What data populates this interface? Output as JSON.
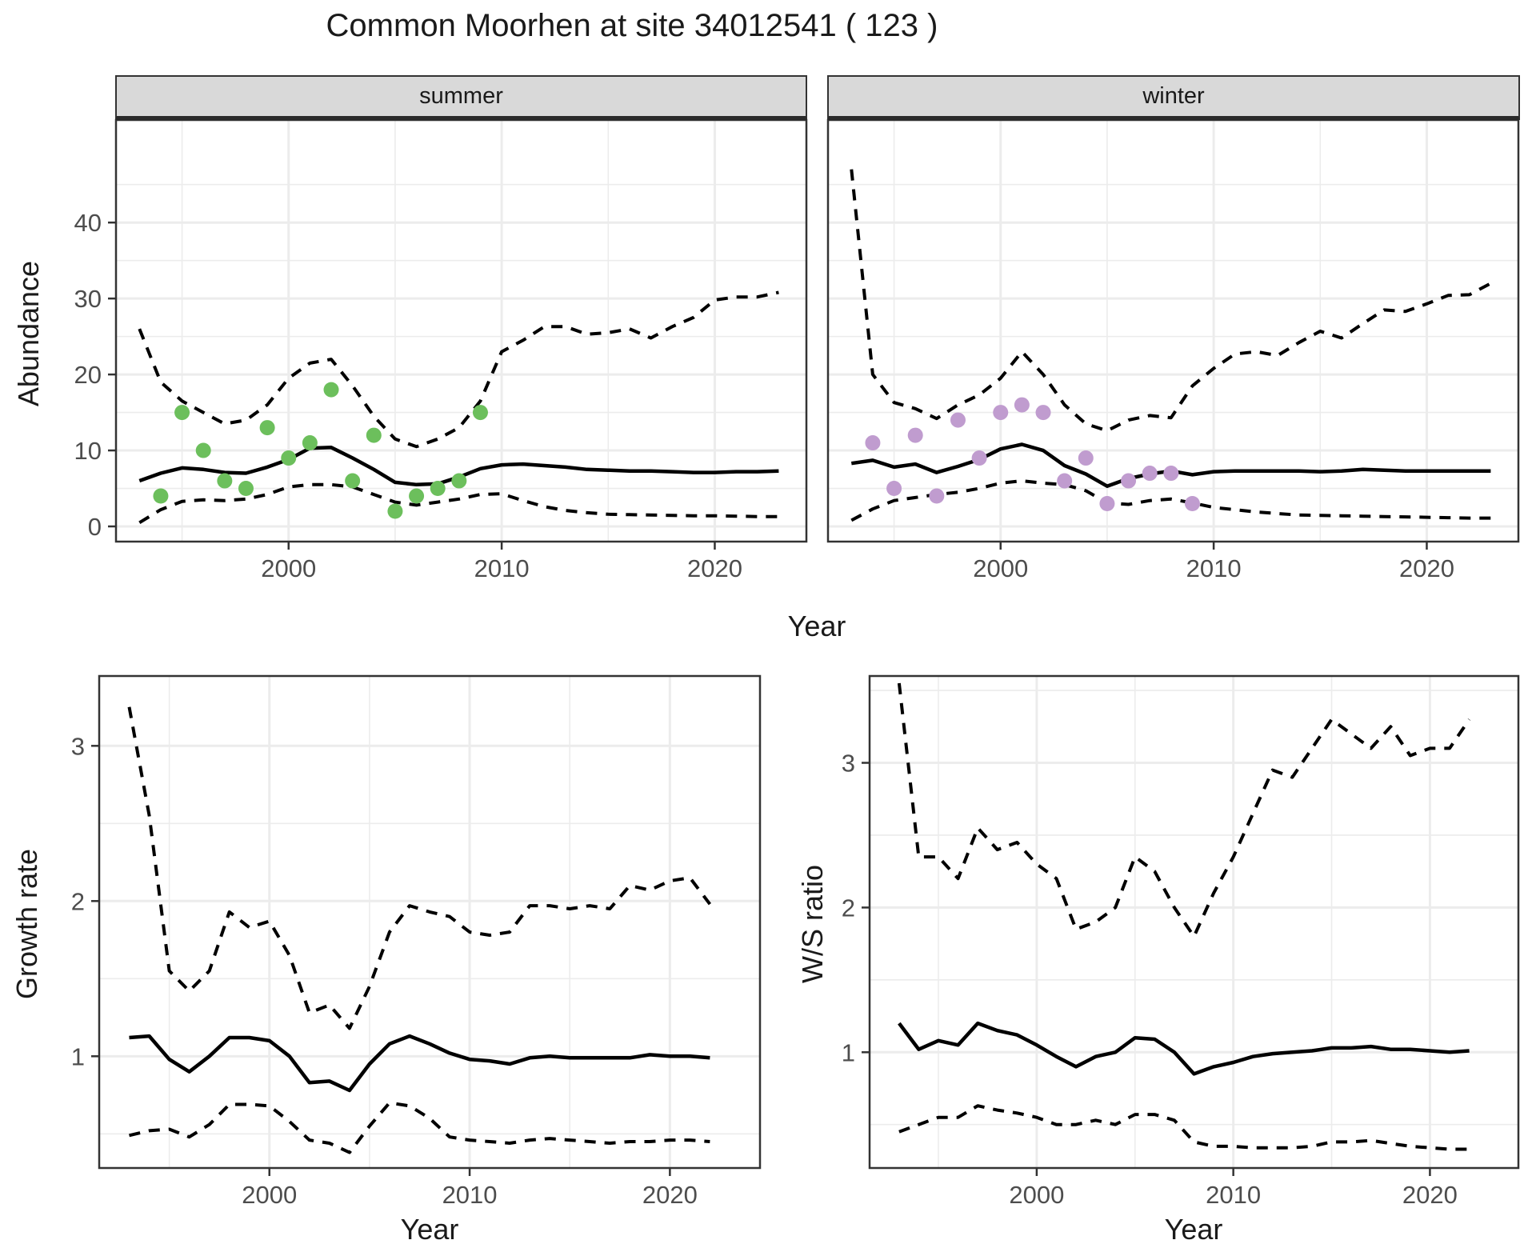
{
  "title": "Common Moorhen at site 34012541 ( 123 )",
  "colors": {
    "summer_point": "#6cbf5c",
    "winter_point": "#c09ccf",
    "line": "#000000",
    "grid": "#ececec",
    "panel_border": "#333333",
    "strip_bg": "#d9d9d9",
    "tick_text": "#4d4d4d"
  },
  "chart_data": [
    {
      "type": "line",
      "facet": "summer",
      "xlabel": "Year",
      "ylabel": "Abundance",
      "xlim": [
        1991.9,
        2024.3
      ],
      "ylim": [
        -2,
        53.5
      ],
      "xticks": [
        2000,
        2010,
        2020
      ],
      "xminor": [
        1995,
        2005,
        2015
      ],
      "yticks": [
        0,
        10,
        20,
        30,
        40
      ],
      "yminor": [
        5,
        15,
        25,
        35,
        45
      ],
      "x": [
        1993,
        1994,
        1995,
        1996,
        1997,
        1998,
        1999,
        2000,
        2001,
        2002,
        2003,
        2004,
        2005,
        2006,
        2007,
        2008,
        2009,
        2010,
        2011,
        2012,
        2013,
        2014,
        2015,
        2016,
        2017,
        2018,
        2019,
        2020,
        2021,
        2022,
        2023
      ],
      "series": [
        {
          "name": "median",
          "style": "solid",
          "values": [
            6.0,
            7.0,
            7.7,
            7.5,
            7.1,
            7.0,
            7.8,
            8.8,
            10.3,
            10.4,
            9.0,
            7.5,
            5.8,
            5.5,
            5.6,
            6.5,
            7.6,
            8.1,
            8.2,
            8.0,
            7.8,
            7.5,
            7.4,
            7.3,
            7.3,
            7.2,
            7.1,
            7.1,
            7.2,
            7.2,
            7.3
          ]
        },
        {
          "name": "upper-95ci",
          "style": "dashed",
          "values": [
            26,
            19,
            16.5,
            15,
            13.5,
            14,
            16,
            19.5,
            21.5,
            22,
            18.5,
            14.5,
            11.5,
            10.5,
            11.5,
            13,
            16.5,
            23,
            24.5,
            26.3,
            26.3,
            25.3,
            25.5,
            26,
            24.8,
            26.3,
            27.5,
            29.8,
            30.2,
            30.2,
            30.8
          ]
        },
        {
          "name": "lower-95ci",
          "style": "dashed",
          "values": [
            0.5,
            2.2,
            3.3,
            3.5,
            3.4,
            3.6,
            4.2,
            5.2,
            5.5,
            5.5,
            5.2,
            4.2,
            3.2,
            2.8,
            3.2,
            3.6,
            4.2,
            4.3,
            3.4,
            2.6,
            2.1,
            1.8,
            1.6,
            1.55,
            1.5,
            1.45,
            1.4,
            1.4,
            1.35,
            1.3,
            1.3
          ]
        }
      ],
      "points": {
        "name": "observed-counts",
        "color": "#6cbf5c",
        "x": [
          1994,
          1995,
          1996,
          1997,
          1998,
          1999,
          2000,
          2001,
          2002,
          2003,
          2004,
          2005,
          2006,
          2007,
          2008,
          2009
        ],
        "y": [
          4,
          15,
          10,
          6,
          5,
          13,
          9,
          11,
          18,
          6,
          12,
          2,
          4,
          5,
          6,
          15
        ]
      }
    },
    {
      "type": "line",
      "facet": "winter",
      "xlabel": "Year",
      "ylabel": "Abundance",
      "xlim": [
        1991.9,
        2024.3
      ],
      "ylim": [
        -2,
        53.5
      ],
      "xticks": [
        2000,
        2010,
        2020
      ],
      "xminor": [
        1995,
        2005,
        2015
      ],
      "yticks": [
        0,
        10,
        20,
        30,
        40
      ],
      "yminor": [
        5,
        15,
        25,
        35,
        45
      ],
      "x": [
        1993,
        1994,
        1995,
        1996,
        1997,
        1998,
        1999,
        2000,
        2001,
        2002,
        2003,
        2004,
        2005,
        2006,
        2007,
        2008,
        2009,
        2010,
        2011,
        2012,
        2013,
        2014,
        2015,
        2016,
        2017,
        2018,
        2019,
        2020,
        2021,
        2022,
        2023
      ],
      "series": [
        {
          "name": "median",
          "style": "solid",
          "values": [
            8.3,
            8.7,
            7.8,
            8.2,
            7.1,
            7.9,
            8.8,
            10.2,
            10.8,
            10.0,
            8.0,
            6.9,
            5.3,
            6.3,
            6.9,
            7.3,
            6.8,
            7.2,
            7.3,
            7.3,
            7.3,
            7.3,
            7.2,
            7.3,
            7.5,
            7.4,
            7.3,
            7.3,
            7.3,
            7.3,
            7.3
          ]
        },
        {
          "name": "upper-95ci",
          "style": "dashed",
          "values": [
            47,
            20,
            16.3,
            15.5,
            14.2,
            16,
            17.3,
            19.5,
            23,
            20,
            16,
            13.5,
            12.6,
            14,
            14.6,
            14.3,
            18.5,
            20.8,
            22.7,
            23,
            22.5,
            24.2,
            25.7,
            24.8,
            26.7,
            28.5,
            28.3,
            29.3,
            30.4,
            30.5,
            32
          ]
        },
        {
          "name": "lower-95ci",
          "style": "dashed",
          "values": [
            0.8,
            2.3,
            3.4,
            3.8,
            4.2,
            4.5,
            5.0,
            5.7,
            6.0,
            5.7,
            5.5,
            4.7,
            3.1,
            2.9,
            3.4,
            3.6,
            3.1,
            2.5,
            2.2,
            1.9,
            1.7,
            1.5,
            1.45,
            1.4,
            1.35,
            1.3,
            1.25,
            1.2,
            1.15,
            1.1,
            1.1
          ]
        }
      ],
      "points": {
        "name": "observed-counts",
        "color": "#c09ccf",
        "x": [
          1994,
          1995,
          1996,
          1997,
          1998,
          1999,
          2000,
          2001,
          2002,
          2003,
          2004,
          2005,
          2006,
          2007,
          2008,
          2009
        ],
        "y": [
          11,
          5,
          12,
          4,
          14,
          9,
          15,
          16,
          15,
          6,
          9,
          3,
          6,
          7,
          7,
          3
        ]
      }
    },
    {
      "type": "line",
      "facet": "",
      "xlabel": "Year",
      "ylabel": "Growth rate",
      "xlim": [
        1991.5,
        2024.5
      ],
      "ylim": [
        0.28,
        3.45
      ],
      "xticks": [
        2000,
        2010,
        2020
      ],
      "xminor": [
        1995,
        2005,
        2015
      ],
      "yticks": [
        1,
        2,
        3
      ],
      "yminor": [
        0.5,
        1.5,
        2.5
      ],
      "x": [
        1993,
        1994,
        1995,
        1996,
        1997,
        1998,
        1999,
        2000,
        2001,
        2002,
        2003,
        2004,
        2005,
        2006,
        2007,
        2008,
        2009,
        2010,
        2011,
        2012,
        2013,
        2014,
        2015,
        2016,
        2017,
        2018,
        2019,
        2020,
        2021,
        2022
      ],
      "series": [
        {
          "name": "median",
          "style": "solid",
          "values": [
            1.12,
            1.13,
            0.98,
            0.9,
            1.0,
            1.12,
            1.12,
            1.1,
            1.0,
            0.83,
            0.84,
            0.78,
            0.95,
            1.08,
            1.13,
            1.08,
            1.02,
            0.98,
            0.97,
            0.95,
            0.99,
            1.0,
            0.99,
            0.99,
            0.99,
            0.99,
            1.01,
            1.0,
            1.0,
            0.99
          ]
        },
        {
          "name": "upper-95ci",
          "style": "dashed",
          "values": [
            3.25,
            2.55,
            1.55,
            1.42,
            1.55,
            1.93,
            1.83,
            1.87,
            1.65,
            1.28,
            1.33,
            1.18,
            1.45,
            1.8,
            1.97,
            1.93,
            1.9,
            1.8,
            1.78,
            1.8,
            1.97,
            1.97,
            1.95,
            1.97,
            1.95,
            2.1,
            2.07,
            2.13,
            2.15,
            1.98
          ]
        },
        {
          "name": "lower-95ci",
          "style": "dashed",
          "values": [
            0.49,
            0.52,
            0.53,
            0.48,
            0.56,
            0.69,
            0.69,
            0.68,
            0.58,
            0.46,
            0.44,
            0.38,
            0.55,
            0.7,
            0.68,
            0.6,
            0.48,
            0.46,
            0.45,
            0.44,
            0.46,
            0.47,
            0.46,
            0.45,
            0.44,
            0.45,
            0.45,
            0.46,
            0.46,
            0.45
          ]
        }
      ],
      "points": null
    },
    {
      "type": "line",
      "facet": "",
      "xlabel": "Year",
      "ylabel": "W/S ratio",
      "xlim": [
        1991.5,
        2024.5
      ],
      "ylim": [
        0.2,
        3.6
      ],
      "xticks": [
        2000,
        2010,
        2020
      ],
      "xminor": [
        1995,
        2005,
        2015
      ],
      "yticks": [
        1,
        2,
        3
      ],
      "yminor": [
        0.5,
        1.5,
        2.5,
        3.5
      ],
      "x": [
        1993,
        1994,
        1995,
        1996,
        1997,
        1998,
        1999,
        2000,
        2001,
        2002,
        2003,
        2004,
        2005,
        2006,
        2007,
        2008,
        2009,
        2010,
        2011,
        2012,
        2013,
        2014,
        2015,
        2016,
        2017,
        2018,
        2019,
        2020,
        2021,
        2022
      ],
      "series": [
        {
          "name": "median",
          "style": "solid",
          "values": [
            1.2,
            1.02,
            1.08,
            1.05,
            1.2,
            1.15,
            1.12,
            1.05,
            0.97,
            0.9,
            0.97,
            1.0,
            1.1,
            1.09,
            1.0,
            0.85,
            0.9,
            0.93,
            0.97,
            0.99,
            1.0,
            1.01,
            1.03,
            1.03,
            1.04,
            1.02,
            1.02,
            1.01,
            1.0,
            1.01
          ]
        },
        {
          "name": "upper-95ci",
          "style": "dashed",
          "values": [
            3.55,
            2.35,
            2.35,
            2.2,
            2.55,
            2.4,
            2.45,
            2.3,
            2.2,
            1.85,
            1.9,
            2.0,
            2.35,
            2.25,
            2.0,
            1.8,
            2.1,
            2.35,
            2.65,
            2.95,
            2.9,
            3.1,
            3.3,
            3.2,
            3.1,
            3.25,
            3.05,
            3.1,
            3.1,
            3.3
          ]
        },
        {
          "name": "lower-95ci",
          "style": "dashed",
          "values": [
            0.45,
            0.5,
            0.55,
            0.55,
            0.63,
            0.6,
            0.58,
            0.55,
            0.5,
            0.5,
            0.53,
            0.5,
            0.57,
            0.57,
            0.53,
            0.38,
            0.35,
            0.35,
            0.34,
            0.34,
            0.34,
            0.35,
            0.38,
            0.38,
            0.39,
            0.37,
            0.35,
            0.34,
            0.33,
            0.33
          ]
        }
      ],
      "points": null
    }
  ]
}
